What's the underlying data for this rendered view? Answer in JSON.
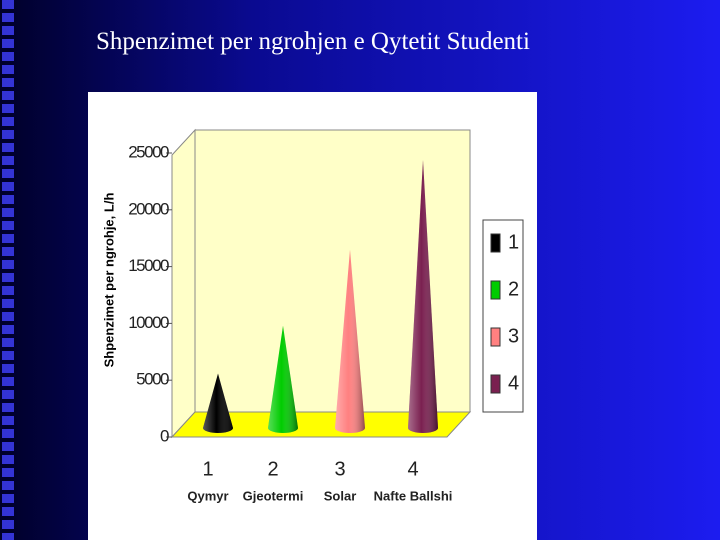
{
  "chart_data": {
    "type": "cone",
    "title": "Shpenzimet per ngrohjen e Qytetit Studenti",
    "y_label": "Shpenzimet per ngrohje, L/h",
    "categories": [
      "1",
      "2",
      "3",
      "4"
    ],
    "category_names": [
      "Qymyr",
      "Gjeotermi",
      "Solar",
      "Nafte Ballshi"
    ],
    "series": [
      {
        "name": "1",
        "color": "#000000",
        "values": [
          4800,
          null,
          null,
          null
        ]
      },
      {
        "name": "2",
        "color": "#00cc00",
        "values": [
          null,
          9000,
          null,
          null
        ]
      },
      {
        "name": "3",
        "color": "#ff8080",
        "values": [
          null,
          null,
          15700,
          null
        ]
      },
      {
        "name": "4",
        "color": "#7a2050",
        "values": [
          null,
          null,
          null,
          23600
        ]
      }
    ],
    "ylim": [
      0,
      25000
    ],
    "yticks": [
      0,
      5000,
      10000,
      15000,
      20000,
      25000
    ]
  }
}
